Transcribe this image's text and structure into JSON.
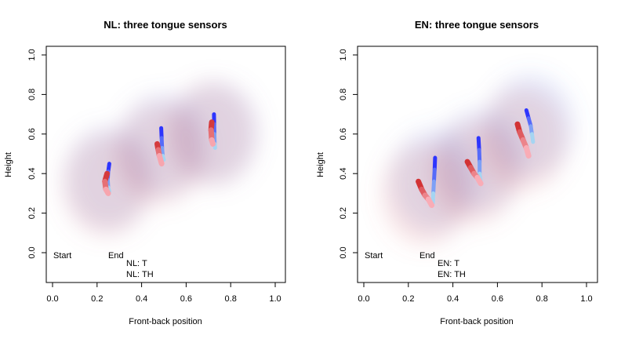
{
  "colors": {
    "nl_t_start": "#1a1aff",
    "nl_t_end": "#b9f0f0",
    "nl_th_start": "#cc1f1f",
    "nl_th_end": "#ffc0cb",
    "cloud_blue": "#5a78e0",
    "cloud_red": "#e07070"
  },
  "legend": {
    "start_label": "Start",
    "end_label": "End"
  },
  "chart_data": [
    {
      "type": "line",
      "title": "NL: three tongue sensors",
      "xlabel": "Front-back position",
      "ylabel": "Height",
      "xlim": [
        -0.05,
        1.05
      ],
      "ylim": [
        -0.15,
        1.05
      ],
      "xticks": [
        "0.0",
        "0.2",
        "0.4",
        "0.6",
        "0.8",
        "1.0"
      ],
      "yticks": [
        "0.0",
        "0.2",
        "0.4",
        "0.6",
        "0.8",
        "1.0"
      ],
      "grid": false,
      "legend_position": "bottom-left",
      "series": [
        {
          "name": "NL: T",
          "sensor": 1,
          "points": [
            [
              0.255,
              0.45
            ],
            [
              0.25,
              0.41
            ],
            [
              0.248,
              0.37
            ],
            [
              0.25,
              0.33
            ],
            [
              0.255,
              0.31
            ]
          ]
        },
        {
          "name": "NL: T",
          "sensor": 2,
          "points": [
            [
              0.488,
              0.63
            ],
            [
              0.49,
              0.58
            ],
            [
              0.492,
              0.53
            ],
            [
              0.495,
              0.49
            ],
            [
              0.5,
              0.47
            ]
          ]
        },
        {
          "name": "NL: T",
          "sensor": 3,
          "points": [
            [
              0.725,
              0.7
            ],
            [
              0.726,
              0.65
            ],
            [
              0.727,
              0.6
            ],
            [
              0.728,
              0.55
            ],
            [
              0.73,
              0.53
            ]
          ]
        },
        {
          "name": "NL: TH",
          "sensor": 1,
          "points": [
            [
              0.245,
              0.4
            ],
            [
              0.235,
              0.36
            ],
            [
              0.24,
              0.32
            ],
            [
              0.25,
              0.3
            ]
          ]
        },
        {
          "name": "NL: TH",
          "sensor": 2,
          "points": [
            [
              0.47,
              0.55
            ],
            [
              0.475,
              0.52
            ],
            [
              0.48,
              0.49
            ],
            [
              0.49,
              0.45
            ]
          ]
        },
        {
          "name": "NL: TH",
          "sensor": 3,
          "points": [
            [
              0.715,
              0.66
            ],
            [
              0.712,
              0.62
            ],
            [
              0.715,
              0.57
            ],
            [
              0.72,
              0.55
            ]
          ]
        }
      ],
      "legend_entries": [
        "NL: T",
        "NL: TH"
      ]
    },
    {
      "type": "line",
      "title": "EN: three tongue sensors",
      "xlabel": "Front-back position",
      "ylabel": "Height",
      "xlim": [
        -0.05,
        1.05
      ],
      "ylim": [
        -0.15,
        1.05
      ],
      "xticks": [
        "0.0",
        "0.2",
        "0.4",
        "0.6",
        "0.8",
        "1.0"
      ],
      "yticks": [
        "0.0",
        "0.2",
        "0.4",
        "0.6",
        "0.8",
        "1.0"
      ],
      "grid": false,
      "legend_position": "bottom-left",
      "series": [
        {
          "name": "EN: T",
          "sensor": 1,
          "points": [
            [
              0.32,
              0.48
            ],
            [
              0.318,
              0.42
            ],
            [
              0.315,
              0.36
            ],
            [
              0.312,
              0.3
            ],
            [
              0.31,
              0.25
            ]
          ]
        },
        {
          "name": "EN: T",
          "sensor": 2,
          "points": [
            [
              0.515,
              0.58
            ],
            [
              0.518,
              0.52
            ],
            [
              0.52,
              0.46
            ],
            [
              0.52,
              0.4
            ],
            [
              0.525,
              0.36
            ]
          ]
        },
        {
          "name": "EN: T",
          "sensor": 3,
          "points": [
            [
              0.73,
              0.72
            ],
            [
              0.74,
              0.68
            ],
            [
              0.75,
              0.64
            ],
            [
              0.755,
              0.6
            ],
            [
              0.76,
              0.56
            ]
          ]
        },
        {
          "name": "EN: TH",
          "sensor": 1,
          "points": [
            [
              0.245,
              0.36
            ],
            [
              0.26,
              0.32
            ],
            [
              0.275,
              0.29
            ],
            [
              0.29,
              0.27
            ],
            [
              0.305,
              0.24
            ]
          ]
        },
        {
          "name": "EN: TH",
          "sensor": 2,
          "points": [
            [
              0.465,
              0.46
            ],
            [
              0.48,
              0.43
            ],
            [
              0.495,
              0.4
            ],
            [
              0.51,
              0.38
            ],
            [
              0.525,
              0.35
            ]
          ]
        },
        {
          "name": "EN: TH",
          "sensor": 3,
          "points": [
            [
              0.69,
              0.65
            ],
            [
              0.7,
              0.61
            ],
            [
              0.715,
              0.57
            ],
            [
              0.73,
              0.53
            ],
            [
              0.74,
              0.49
            ]
          ]
        }
      ],
      "legend_entries": [
        "EN: T",
        "EN: TH"
      ]
    }
  ]
}
